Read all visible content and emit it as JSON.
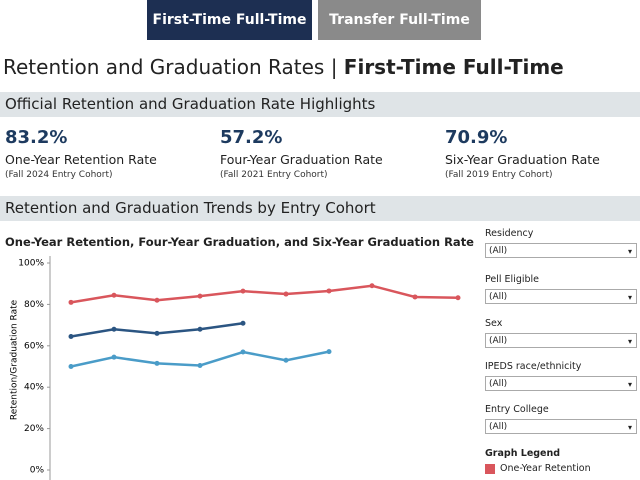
{
  "tabs": [
    "First-Time Full-Time",
    "Transfer Full-Time"
  ],
  "header": {
    "title": "Retention and Graduation Rates",
    "separator": "|",
    "title_emphasis": "First-Time Full-Time"
  },
  "highlights": {
    "heading": "Official Retention and Graduation Rate Highlights",
    "items": [
      {
        "value": "83.2%",
        "label": "One-Year Retention Rate",
        "cohort": "(Fall 2024 Entry Cohort)"
      },
      {
        "value": "57.2%",
        "label": "Four-Year Graduation Rate",
        "cohort": "(Fall 2021 Entry Cohort)"
      },
      {
        "value": "70.9%",
        "label": "Six-Year Graduation Rate",
        "cohort": "(Fall 2019 Entry Cohort)"
      }
    ]
  },
  "trends_heading": "Retention and Graduation Trends by Entry Cohort",
  "chart_data": {
    "type": "line",
    "title": "One-Year Retention, Four-Year Graduation, and Six-Year Graduation Rate",
    "y_label": "Retention/Graduation Rate",
    "categories": [
      null,
      null,
      null,
      null,
      null,
      null,
      null,
      null,
      null,
      null
    ],
    "series": [
      {
        "name": "One-Year Retention",
        "color": "#d9565c",
        "values": [
          81,
          84.4,
          82,
          84,
          86.4,
          85,
          86.5,
          89,
          83.6,
          83.2
        ]
      },
      {
        "color": "#2b5582",
        "values": [
          64.5,
          68,
          66,
          68,
          70.9,
          null,
          null,
          null,
          null,
          null
        ]
      },
      {
        "color": "#4a9cc8",
        "values": [
          50,
          54.5,
          51.5,
          50.5,
          57,
          53,
          57.2,
          null,
          null,
          null
        ]
      }
    ],
    "ylim": [
      0,
      100
    ],
    "yticks": [
      {
        "value": 0,
        "label": "0%"
      },
      {
        "value": 20,
        "label": "20%"
      },
      {
        "value": 40,
        "label": "40%"
      },
      {
        "value": 60,
        "label": "60%"
      },
      {
        "value": 80,
        "label": "80%"
      },
      {
        "value": 100,
        "label": "100%"
      }
    ],
    "grid": false
  },
  "filters": [
    {
      "label": "Residency",
      "value": "(All)"
    },
    {
      "label": "Pell Eligible",
      "value": "(All)"
    },
    {
      "label": "Sex",
      "value": "(All)"
    },
    {
      "label": "IPEDS race/ethnicity",
      "value": "(All)"
    },
    {
      "label": "Entry College",
      "value": "(All)"
    }
  ],
  "legend_heading": "Graph Legend"
}
